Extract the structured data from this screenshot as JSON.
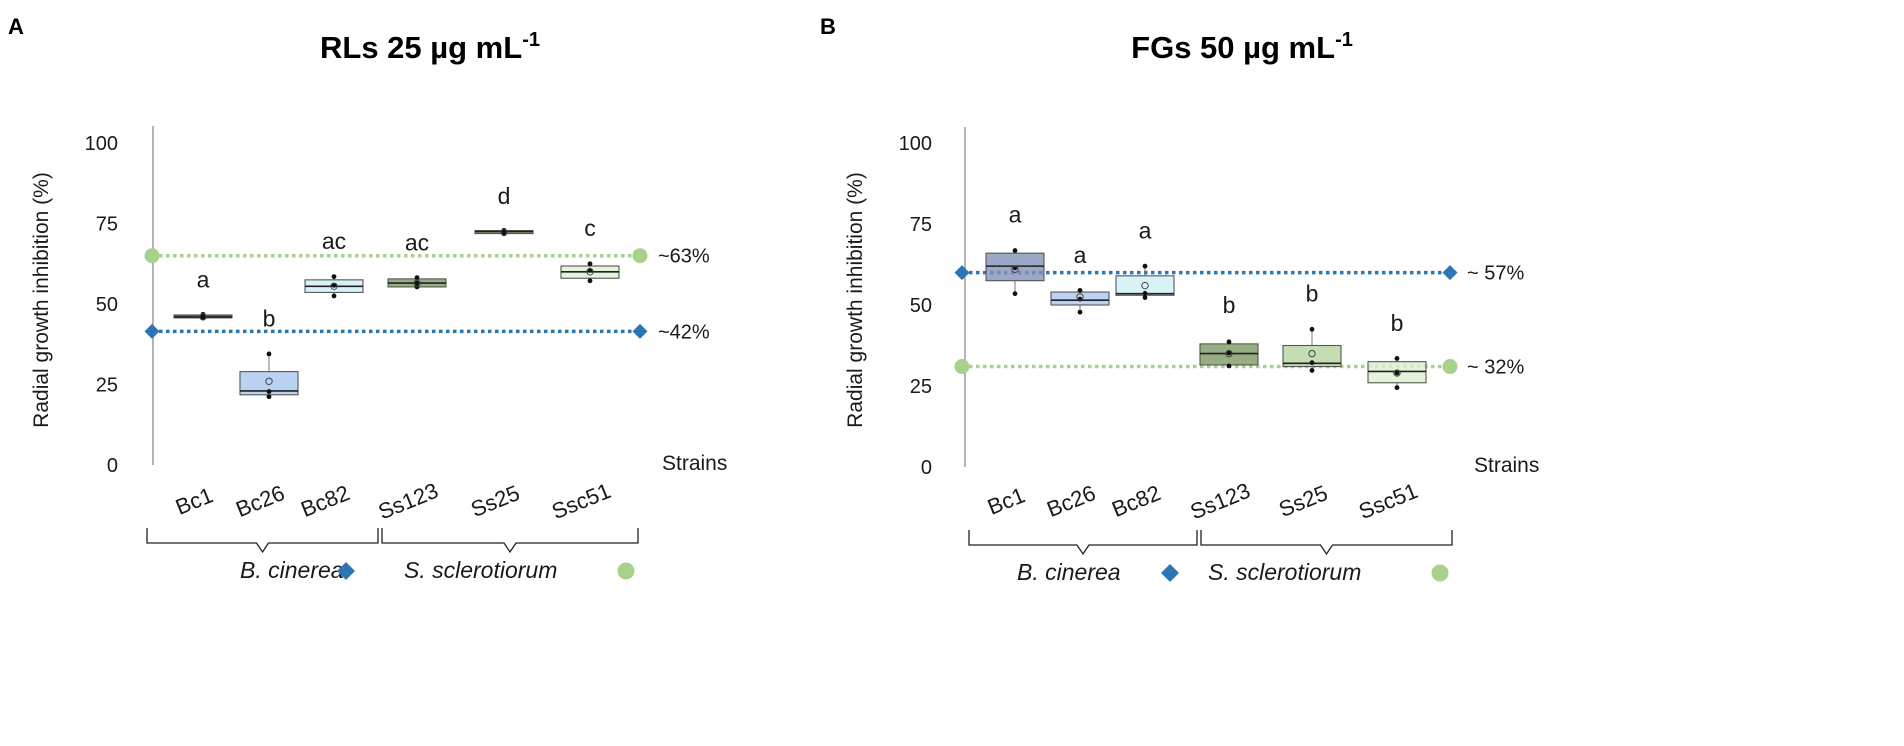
{
  "figure": {
    "species": {
      "bcinerea": "B. cinerea",
      "ssclerotiorum": "S. sclerotiorum"
    },
    "colors": {
      "bcinerea_marker": "#2e75b6",
      "ssclerotiorum_marker": "#a9d18e",
      "axis": "#8c8c8c",
      "text": "#1a1a1a"
    }
  },
  "chart_data": [
    {
      "type": "box",
      "panel_label": "A",
      "title": {
        "main": "RLs 25 µg mL",
        "sup": "-1"
      },
      "ylabel": "Radial growth inhibition (%)",
      "xlabel": "Strains",
      "ylim": [
        0,
        100
      ],
      "yticks": [
        0,
        25,
        50,
        75,
        100
      ],
      "categories": [
        "Bc1",
        "Bc26",
        "Bc82",
        "Ss123",
        "Ss25",
        "Ssc51"
      ],
      "boxes": [
        {
          "strain": "Bc1",
          "fill": "#2d3d61",
          "letter": "a",
          "min": 45.5,
          "q1": 45.7,
          "median": 46.0,
          "q3": 46.6,
          "max": 47.1,
          "mean": 46.0,
          "points": [
            45.8,
            46.4,
            46.8
          ]
        },
        {
          "strain": "Bc26",
          "fill": "#a8c7ee",
          "letter": "b",
          "min": 21.0,
          "q1": 21.8,
          "median": 23.0,
          "q3": 29.0,
          "max": 35.0,
          "mean": 26.0,
          "points": [
            21.2,
            22.8,
            34.5
          ]
        },
        {
          "strain": "Bc82",
          "fill": "#cdeef6",
          "letter": "ac",
          "min": 52.0,
          "q1": 53.6,
          "median": 55.5,
          "q3": 57.5,
          "max": 59.0,
          "mean": 55.5,
          "points": [
            52.5,
            55.8,
            58.5
          ]
        },
        {
          "strain": "Ss123",
          "fill": "#7a9760",
          "letter": "ac",
          "min": 55.0,
          "q1": 55.3,
          "median": 56.5,
          "q3": 57.8,
          "max": 58.5,
          "mean": 56.5,
          "points": [
            55.3,
            56.5,
            58.2
          ]
        },
        {
          "strain": "Ss25",
          "fill": "#789a5a",
          "letter": "d",
          "min": 71.5,
          "q1": 72.0,
          "median": 72.5,
          "q3": 72.8,
          "max": 73.0,
          "mean": 72.3,
          "points": [
            71.8,
            72.5,
            72.9
          ]
        },
        {
          "strain": "Ssc51",
          "fill": "#ddf0d0",
          "letter": "c",
          "min": 57.0,
          "q1": 58.0,
          "median": 60.0,
          "q3": 61.8,
          "max": 63.0,
          "mean": 60.0,
          "points": [
            57.2,
            60.5,
            62.5
          ]
        }
      ],
      "reference_lines": [
        {
          "species": "S. sclerotiorum",
          "value": 65,
          "label": "~63%",
          "color": "#a9d18e",
          "marker": "circle"
        },
        {
          "species": "B. cinerea",
          "value": 41.5,
          "label": "~42%",
          "color": "#2e75b6",
          "marker": "diamond"
        }
      ],
      "groups": [
        {
          "species": "B. cinerea",
          "strains": [
            "Bc1",
            "Bc26",
            "Bc82"
          ],
          "marker": "diamond",
          "color": "#2e75b6"
        },
        {
          "species": "S. sclerotiorum",
          "strains": [
            "Ss123",
            "Ss25",
            "Ssc51"
          ],
          "marker": "circle",
          "color": "#a9d18e"
        }
      ]
    },
    {
      "type": "box",
      "panel_label": "B",
      "title": {
        "main": "FGs 50 µg mL",
        "sup": "-1"
      },
      "ylabel": "Radial growth inhibition (%)",
      "xlabel": "Strains",
      "ylim": [
        0,
        100
      ],
      "yticks": [
        0,
        25,
        50,
        75,
        100
      ],
      "categories": [
        "Bc1",
        "Bc26",
        "Bc82",
        "Ss123",
        "Ss25",
        "Ssc51"
      ],
      "boxes": [
        {
          "strain": "Bc1",
          "fill": "#7f8fb8",
          "letter": "a",
          "min": 53.0,
          "q1": 57.5,
          "median": 62.0,
          "q3": 66.0,
          "max": 67.5,
          "mean": 61.0,
          "points": [
            53.5,
            61.5,
            66.8
          ]
        },
        {
          "strain": "Bc26",
          "fill": "#a8c7ee",
          "letter": "a",
          "min": 47.5,
          "q1": 50.0,
          "median": 51.5,
          "q3": 54.0,
          "max": 55.0,
          "mean": 52.5,
          "points": [
            47.8,
            51.8,
            54.5
          ]
        },
        {
          "strain": "Bc82",
          "fill": "#cdeef6",
          "letter": "a",
          "min": 52.0,
          "q1": 53.0,
          "median": 53.5,
          "q3": 59.0,
          "max": 62.5,
          "mean": 56.0,
          "points": [
            52.3,
            53.6,
            62.0
          ]
        },
        {
          "strain": "Ss123",
          "fill": "#7a9760",
          "letter": "b",
          "min": 31.0,
          "q1": 31.5,
          "median": 35.0,
          "q3": 38.0,
          "max": 39.5,
          "mean": 35.0,
          "points": [
            31.2,
            35.2,
            38.6
          ]
        },
        {
          "strain": "Ss25",
          "fill": "#b5d49e",
          "letter": "b",
          "min": 29.5,
          "q1": 31.0,
          "median": 32.0,
          "q3": 37.5,
          "max": 43.0,
          "mean": 35.0,
          "points": [
            29.8,
            32.2,
            42.5
          ]
        },
        {
          "strain": "Ssc51",
          "fill": "#ddf0d0",
          "letter": "b",
          "min": 24.0,
          "q1": 26.0,
          "median": 29.5,
          "q3": 32.5,
          "max": 34.0,
          "mean": 29.0,
          "points": [
            24.5,
            29.0,
            33.5
          ]
        }
      ],
      "reference_lines": [
        {
          "species": "B. cinerea",
          "value": 60,
          "label": "~ 57%",
          "color": "#2e75b6",
          "marker": "diamond"
        },
        {
          "species": "S. sclerotiorum",
          "value": 31,
          "label": "~ 32%",
          "color": "#a9d18e",
          "marker": "circle"
        }
      ],
      "groups": [
        {
          "species": "B. cinerea",
          "strains": [
            "Bc1",
            "Bc26",
            "Bc82"
          ],
          "marker": "diamond",
          "color": "#2e75b6"
        },
        {
          "species": "S. sclerotiorum",
          "strains": [
            "Ss123",
            "Ss25",
            "Ssc51"
          ],
          "marker": "circle",
          "color": "#a9d18e"
        }
      ]
    }
  ]
}
